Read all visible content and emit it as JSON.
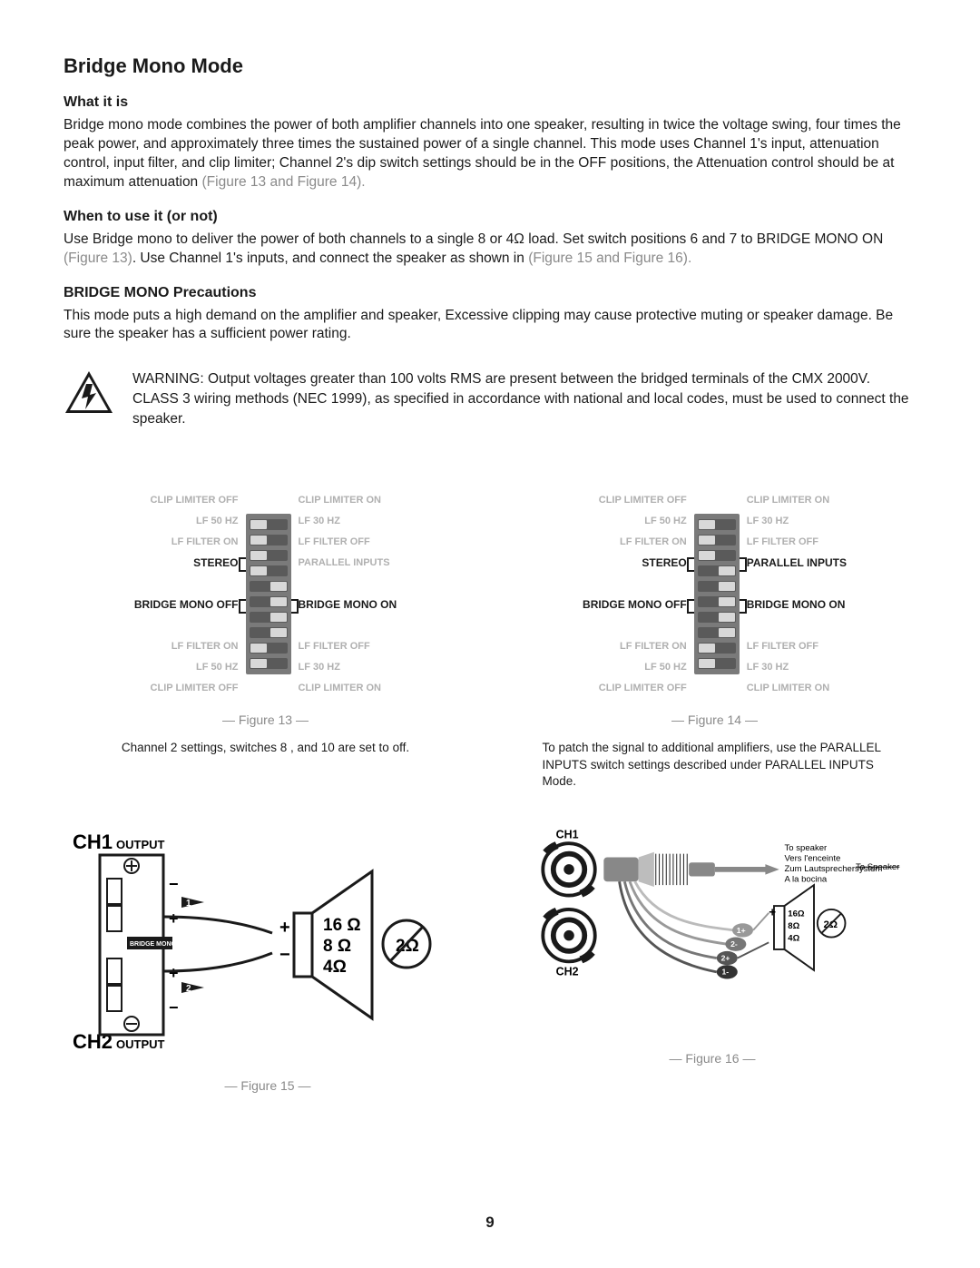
{
  "page": {
    "title": "Bridge Mono Mode",
    "number": "9",
    "font_color": "#1a1a1a",
    "grey_color": "#8a8a8a",
    "light_grey": "#b0b0b0",
    "bg": "#ffffff"
  },
  "sections": {
    "what": {
      "heading": "What it is",
      "body_a": "Bridge mono mode combines the power of both amplifier channels into one speaker, resulting in twice the voltage swing, four times the peak power, and approximately three times the sustained power of a single channel. This mode uses Channel 1's input, attenuation control, input filter, and clip limiter; Channel 2's dip switch settings should be in the OFF positions, the Attenuation control should be at maximum attenuation ",
      "body_b": "(Figure 13 and Figure 14)."
    },
    "when": {
      "heading": "When to use it (or not)",
      "body_a": "Use Bridge mono to deliver the power of both channels to a single 8  or 4Ω load. Set switch positions 6 and 7 to BRIDGE MONO ON ",
      "body_b": "(Figure 13)",
      "body_c": ". Use Channel 1's inputs, and connect the speaker as shown in ",
      "body_d": "(Figure 15 and Figure 16)."
    },
    "precautions": {
      "heading": "BRIDGE MONO Precautions",
      "body": "This mode puts a high demand on the amplifier and speaker, Excessive clipping may cause protective muting or speaker damage. Be sure the speaker has a sufficient power rating."
    },
    "warning": "WARNING: Output voltages greater than 100 volts RMS are present between the bridged terminals of the CMX 2000V. CLASS 3 wiring methods (NEC 1999), as specified in accordance with national and local codes, must be used to connect the speaker."
  },
  "dip": {
    "left_labels": [
      "CLIP LIMITER OFF",
      "LF 50 HZ",
      "LF FILTER ON",
      "STEREO",
      "",
      "BRIDGE MONO OFF",
      "",
      "LF FILTER ON",
      "LF 50 HZ",
      "CLIP LIMITER OFF"
    ],
    "right_labels": [
      "CLIP LIMITER ON",
      "LF 30 HZ",
      "LF FILTER OFF",
      "PARALLEL INPUTS",
      "",
      "BRIDGE MONO ON",
      "",
      "LF FILTER OFF",
      "LF 30 HZ",
      "CLIP LIMITER ON"
    ],
    "switch_bg": "#7a7a7a",
    "switch_slot": "#5a5a5a",
    "switch_knob": "#d8d8d8"
  },
  "fig13": {
    "caption": "— Figure 13 —",
    "desc": "Channel 2 settings, switches 8 , and 10 are set to off.",
    "positions": [
      "left",
      "left",
      "left",
      "left",
      "right",
      "right",
      "right",
      "right",
      "left",
      "left"
    ],
    "bold_left": {
      "3": true,
      "5": true
    },
    "bold_right": {
      "3": false,
      "5": true
    }
  },
  "fig14": {
    "caption": "— Figure 14 —",
    "desc": "To patch the signal to additional amplifiers, use the PARALLEL INPUTS switch settings described under PARALLEL INPUTS Mode.",
    "positions": [
      "left",
      "left",
      "left",
      "right",
      "right",
      "right",
      "right",
      "right",
      "left",
      "left"
    ],
    "bold_left": {
      "3": true,
      "5": true
    },
    "bold_right": {
      "3": true,
      "5": true
    }
  },
  "fig15": {
    "caption": "— Figure 15 —",
    "ch1": "CH1",
    "ch2": "CH2",
    "output": "OUTPUT",
    "bridge_mono": "BRIDGE MONO",
    "ohms": {
      "a": "16",
      "b": "8",
      "c": "4",
      "cross": "2",
      "unit": "Ω"
    },
    "plus": "+",
    "minus": "−",
    "pin1": "1",
    "pin2": "2"
  },
  "fig16": {
    "caption": "— Figure 16 —",
    "ch1": "CH1",
    "ch2": "CH2",
    "to_speaker": {
      "en": "To speaker",
      "fr": "Vers l'enceinte",
      "de": "Zum Lautsprechersystem",
      "es": "A la bocina",
      "alt": "To Speaker"
    },
    "ohms": {
      "a": "16Ω",
      "b": "8Ω",
      "c": "4Ω",
      "cross": "2Ω"
    },
    "plus": "+",
    "pins": {
      "p1p": "1+",
      "p1m": "1-",
      "p2p": "2+",
      "p2m": "2-"
    }
  }
}
